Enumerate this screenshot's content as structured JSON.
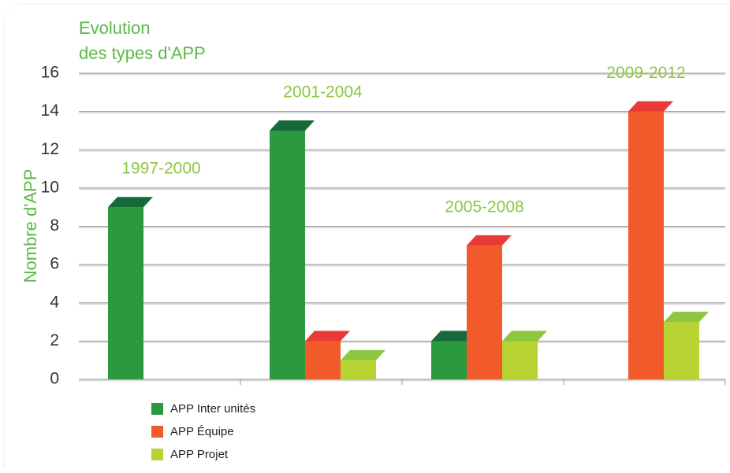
{
  "chart_data": {
    "type": "bar",
    "title": [
      "Evolution",
      "des types d'APP"
    ],
    "y_label": "Nombre d'APP",
    "categories": [
      "1997-2000",
      "2001-2004",
      "2005-2008",
      "2009-2012"
    ],
    "series": [
      {
        "name": "APP Inter unités",
        "color": "#2b9a3e",
        "top_color": "#17693a",
        "values": [
          9,
          13,
          2,
          0
        ]
      },
      {
        "name": "APP Équipe",
        "color": "#f15a2b",
        "top_color": "#e83a37",
        "values": [
          0,
          2,
          7,
          14
        ]
      },
      {
        "name": "APP Projet",
        "color": "#b7d433",
        "top_color": "#8dc63f",
        "values": [
          0,
          1,
          2,
          3
        ]
      }
    ],
    "ylim": [
      0,
      16
    ],
    "yticks": [
      0,
      2,
      4,
      6,
      8,
      10,
      12,
      14,
      16
    ],
    "grid": true
  }
}
